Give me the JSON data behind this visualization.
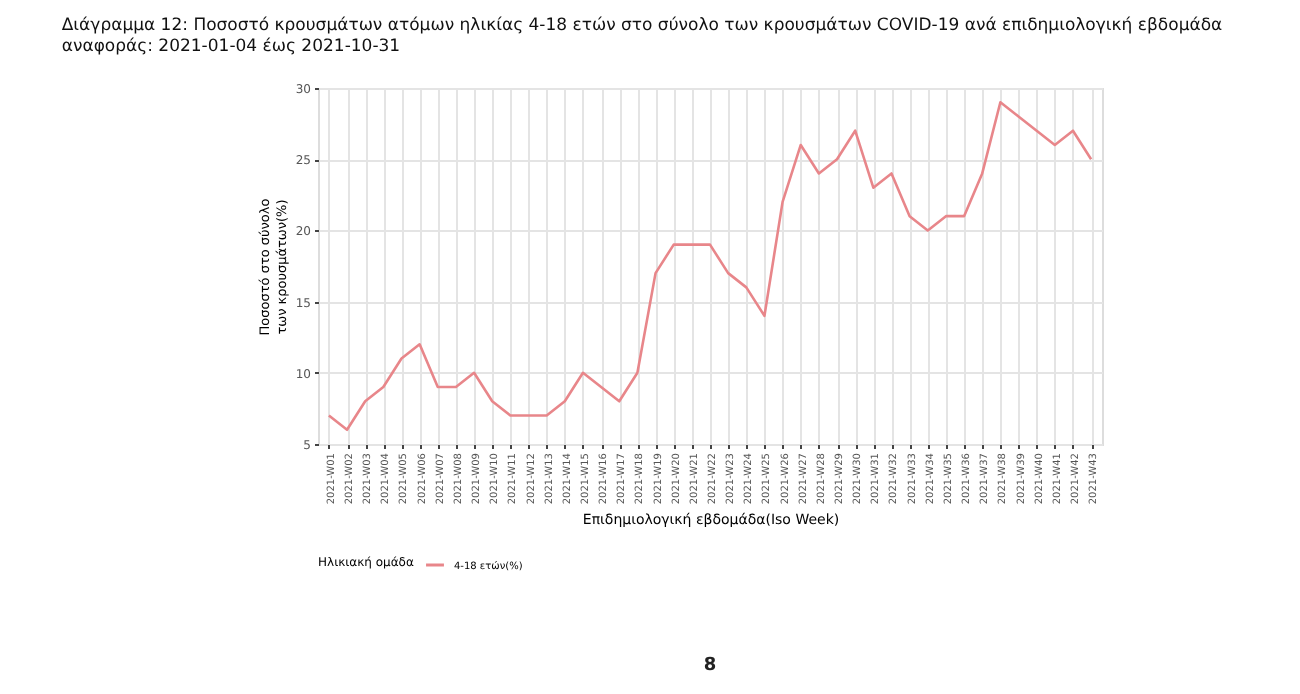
{
  "chart_data": {
    "type": "line",
    "title": "Διάγραμμα 12: Ποσοστό κρουσμάτων ατόμων ηλικίας 4-18 ετών στο σύνολο των κρουσμάτων COVID-19 ανά επιδημιολογική εβδομάδα αναφοράς: 2021-01-04 έως 2021-10-31",
    "xlabel": "Επιδημιολογική εβδομάδα(Iso Week)",
    "ylabel": "Ποσοστό στο σύνολο των κρουσμάτων(%)",
    "legend_title": "Ηλικιακή ομάδα",
    "categories": [
      "2021-W01",
      "2021-W02",
      "2021-W03",
      "2021-W04",
      "2021-W05",
      "2021-W06",
      "2021-W07",
      "2021-W08",
      "2021-W09",
      "2021-W10",
      "2021-W11",
      "2021-W12",
      "2021-W13",
      "2021-W14",
      "2021-W15",
      "2021-W16",
      "2021-W17",
      "2021-W18",
      "2021-W19",
      "2021-W20",
      "2021-W21",
      "2021-W22",
      "2021-W23",
      "2021-W24",
      "2021-W25",
      "2021-W26",
      "2021-W27",
      "2021-W28",
      "2021-W29",
      "2021-W30",
      "2021-W31",
      "2021-W32",
      "2021-W33",
      "2021-W34",
      "2021-W35",
      "2021-W36",
      "2021-W37",
      "2021-W38",
      "2021-W39",
      "2021-W40",
      "2021-W41",
      "2021-W42",
      "2021-W43"
    ],
    "series": [
      {
        "name": "4-18 ετών(%)",
        "color": "#e8868a",
        "values": [
          7,
          6,
          8,
          9,
          11,
          12,
          9,
          9,
          10,
          8,
          7,
          7,
          7,
          8,
          10,
          9,
          8,
          10,
          17,
          19,
          19,
          19,
          17,
          16,
          14,
          22,
          26,
          24,
          25,
          27,
          23,
          24,
          21,
          20,
          21,
          21,
          24,
          29,
          28,
          27,
          26,
          27,
          25
        ]
      }
    ],
    "ylim": [
      5,
      30
    ],
    "yticks": [
      5,
      10,
      15,
      20,
      25,
      30
    ],
    "grid": true,
    "legend": "bottom",
    "marker": "none",
    "line_style": "solid",
    "annotations": [
      "8"
    ]
  }
}
